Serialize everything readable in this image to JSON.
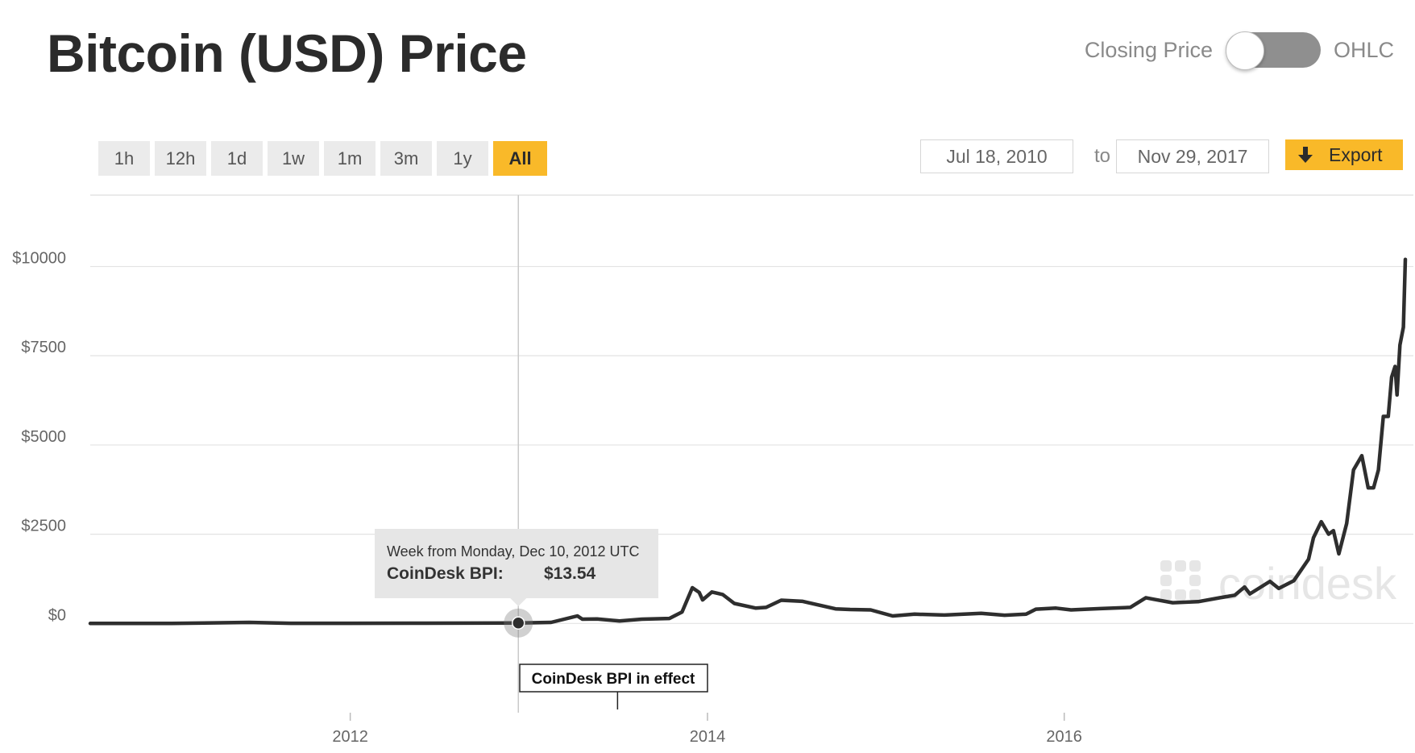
{
  "header": {
    "title": "Bitcoin (USD) Price"
  },
  "toggle": {
    "left_label": "Closing Price",
    "right_label": "OHLC"
  },
  "range_buttons": [
    "1h",
    "12h",
    "1d",
    "1w",
    "1m",
    "3m",
    "1y",
    "All"
  ],
  "active_range": "All",
  "date_range": {
    "from": "Jul 18, 2010",
    "to_label": "to",
    "to": "Nov 29, 2017"
  },
  "export": {
    "label": "Export",
    "icon": "download-arrow-icon"
  },
  "tooltip": {
    "heading": "Week from Monday, Dec 10, 2012 UTC",
    "metric_label": "CoinDesk BPI:",
    "metric_value": "$13.54"
  },
  "annotation": {
    "text": "CoinDesk BPI in effect"
  },
  "watermark": {
    "text": "coindesk"
  },
  "colors": {
    "accent": "#f9b929",
    "line": "#2e2e2e",
    "grid": "#e3e3e3"
  },
  "chart_data": {
    "type": "line",
    "title": "Bitcoin (USD) Price",
    "xlabel": "",
    "ylabel": "",
    "x_tick_labels": [
      "2012",
      "2014",
      "2016"
    ],
    "y_tick_labels": [
      "$0",
      "$2500",
      "$5000",
      "$7500",
      "$10000"
    ],
    "y_ticks": [
      0,
      2500,
      5000,
      7500,
      10000
    ],
    "ylim": [
      -2500,
      12000
    ],
    "xlim": [
      "2010-07-18",
      "2017-11-29"
    ],
    "grid": true,
    "series": [
      {
        "values": [
          [
            "2010-07-18",
            0.1
          ],
          [
            "2011-01-01",
            0.3
          ],
          [
            "2011-06-08",
            30
          ],
          [
            "2011-09-01",
            5
          ],
          [
            "2012-01-01",
            5
          ],
          [
            "2012-06-01",
            6
          ],
          [
            "2012-12-10",
            13.54
          ],
          [
            "2013-02-15",
            30
          ],
          [
            "2013-04-10",
            210
          ],
          [
            "2013-04-20",
            120
          ],
          [
            "2013-05-20",
            125
          ],
          [
            "2013-07-05",
            70
          ],
          [
            "2013-08-20",
            120
          ],
          [
            "2013-10-15",
            140
          ],
          [
            "2013-11-10",
            320
          ],
          [
            "2013-12-01",
            1000
          ],
          [
            "2013-12-15",
            870
          ],
          [
            "2013-12-22",
            660
          ],
          [
            "2014-01-10",
            880
          ],
          [
            "2014-02-01",
            810
          ],
          [
            "2014-02-25",
            560
          ],
          [
            "2014-04-10",
            430
          ],
          [
            "2014-05-01",
            450
          ],
          [
            "2014-06-01",
            650
          ],
          [
            "2014-07-15",
            620
          ],
          [
            "2014-09-20",
            410
          ],
          [
            "2014-10-20",
            390
          ],
          [
            "2014-12-01",
            380
          ],
          [
            "2015-01-15",
            210
          ],
          [
            "2015-03-01",
            260
          ],
          [
            "2015-05-01",
            235
          ],
          [
            "2015-07-15",
            285
          ],
          [
            "2015-09-01",
            230
          ],
          [
            "2015-10-15",
            260
          ],
          [
            "2015-11-04",
            400
          ],
          [
            "2015-12-15",
            430
          ],
          [
            "2016-01-15",
            380
          ],
          [
            "2016-03-15",
            415
          ],
          [
            "2016-05-15",
            450
          ],
          [
            "2016-06-16",
            720
          ],
          [
            "2016-07-01",
            680
          ],
          [
            "2016-08-10",
            580
          ],
          [
            "2016-10-01",
            610
          ],
          [
            "2016-11-15",
            720
          ],
          [
            "2016-12-15",
            790
          ],
          [
            "2017-01-04",
            1020
          ],
          [
            "2017-01-15",
            830
          ],
          [
            "2017-02-25",
            1180
          ],
          [
            "2017-03-15",
            980
          ],
          [
            "2017-04-15",
            1200
          ],
          [
            "2017-05-15",
            1800
          ],
          [
            "2017-05-25",
            2400
          ],
          [
            "2017-06-10",
            2850
          ],
          [
            "2017-06-25",
            2500
          ],
          [
            "2017-07-05",
            2600
          ],
          [
            "2017-07-16",
            1950
          ],
          [
            "2017-08-01",
            2800
          ],
          [
            "2017-08-15",
            4300
          ],
          [
            "2017-09-01",
            4700
          ],
          [
            "2017-09-14",
            3800
          ],
          [
            "2017-09-25",
            3800
          ],
          [
            "2017-10-05",
            4300
          ],
          [
            "2017-10-15",
            5800
          ],
          [
            "2017-10-25",
            5800
          ],
          [
            "2017-11-01",
            6900
          ],
          [
            "2017-11-08",
            7200
          ],
          [
            "2017-11-12",
            6400
          ],
          [
            "2017-11-18",
            7800
          ],
          [
            "2017-11-25",
            8300
          ],
          [
            "2017-11-29",
            10200
          ]
        ]
      }
    ],
    "highlight_point": {
      "x": "2012-12-10",
      "y": 13.54
    },
    "event_marker": {
      "x": "2013-07-01",
      "label": "CoinDesk BPI in effect"
    }
  }
}
